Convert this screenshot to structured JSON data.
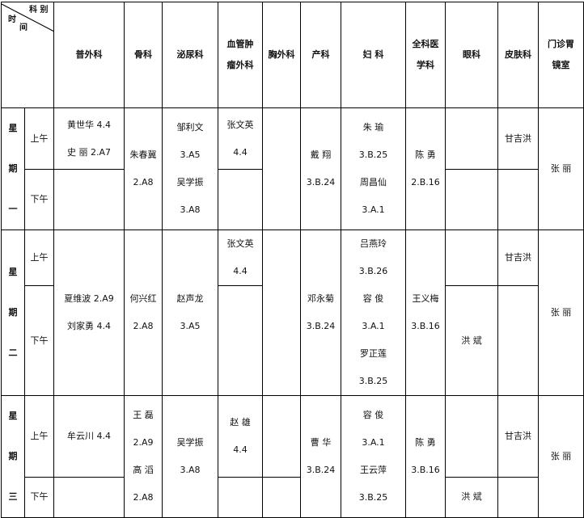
{
  "corner": {
    "dept": "科  别",
    "time_a": "时",
    "time_b": "间"
  },
  "headers": [
    "普外科",
    "骨科",
    "泌尿科",
    "血管肿\n瘤外科",
    "胸外科",
    "产科",
    "妇  科",
    "全科医\n学科",
    "眼科",
    "皮肤科",
    "门诊胃\n镜室"
  ],
  "slots": {
    "am": "上午",
    "pm": "下午"
  },
  "days": [
    {
      "label": "星\n期\n一",
      "general_am": "黄世华 4.4\n史    丽 2.A7",
      "general_pm": "",
      "ortho": "朱春冀\n2.A8",
      "uro": "邹利文\n3.A5\n吴学振\n3.A8",
      "vasc_am": "张文英\n4.4",
      "vasc_pm": "",
      "thoracic": "",
      "obst": "戴    翔\n3.B.24",
      "gyn": "朱    瑜\n3.B.25\n周昌仙\n3.A.1",
      "gp": "陈    勇\n2.B.16",
      "eye_am": "",
      "eye_pm": "",
      "skin_am": "甘吉洪",
      "skin_pm": "",
      "endo": "张    丽"
    },
    {
      "label": "星\n期\n二",
      "general": "夏维波 2.A9\n刘家勇 4.4",
      "ortho": "何兴红\n2.A8",
      "uro": "赵声龙\n3.A5",
      "vasc_am": "张文英\n4.4",
      "vasc_pm": "",
      "thoracic": "",
      "obst": "邓永菊\n3.B.24",
      "gyn": "吕燕玲\n3.B.26\n容    俊\n3.A.1\n罗正莲\n3.B.25",
      "gp": "王义梅\n3.B.16",
      "eye_am": "",
      "eye_pm": "洪    斌",
      "skin_am": "甘吉洪",
      "skin_pm": "",
      "endo": "张    丽"
    },
    {
      "label": "星\n期\n三",
      "general_am": "牟云川 4.4",
      "general_pm": "",
      "ortho": "王    磊\n2.A9\n高    滔\n2.A8",
      "uro": "吴学振\n3.A8",
      "vasc_am": "赵    雄\n4.4",
      "vasc_pm": "",
      "thoracic_am": "",
      "thoracic_pm": "",
      "obst": "曹    华\n3.B.24",
      "gyn": "容    俊\n3.A.1\n王云萍\n3.B.25",
      "gp": "陈    勇\n3.B.16",
      "eye_am": "",
      "eye_pm": "洪    斌",
      "skin_am": "甘吉洪",
      "skin_pm": "",
      "endo": "张    丽"
    }
  ]
}
